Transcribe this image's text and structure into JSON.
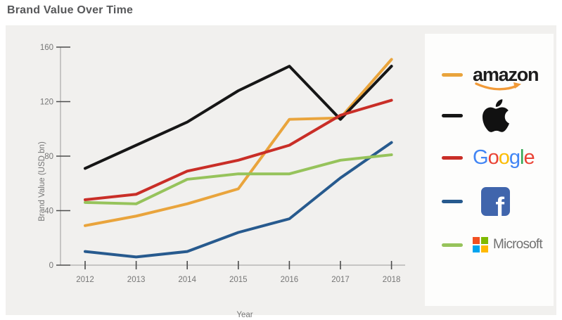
{
  "page": {
    "title": "Brand Value Over Time"
  },
  "chart_data": {
    "type": "line",
    "title": "Brand Value Over Time",
    "xlabel": "Year",
    "ylabel": "Brand Value (USD bn)",
    "x": [
      2012,
      2013,
      2014,
      2015,
      2016,
      2017,
      2018
    ],
    "yticks": [
      0,
      40,
      80,
      120,
      160
    ],
    "ylim": [
      0,
      160
    ],
    "grid": false,
    "legend_position": "right",
    "series": [
      {
        "name": "amazon",
        "color": "#E9A43C",
        "values": [
          29,
          36,
          45,
          56,
          107,
          108,
          151
        ]
      },
      {
        "name": "Apple",
        "color": "#161616",
        "values": [
          71,
          88,
          105,
          128,
          146,
          107,
          146
        ]
      },
      {
        "name": "Google",
        "color": "#C92E27",
        "values": [
          48,
          52,
          69,
          77,
          88,
          110,
          121
        ]
      },
      {
        "name": "Facebook",
        "color": "#275A8E",
        "values": [
          10,
          6,
          10,
          24,
          34,
          64,
          90
        ]
      },
      {
        "name": "Microsoft",
        "color": "#96C35B",
        "values": [
          46,
          45,
          63,
          67,
          67,
          77,
          81
        ]
      }
    ]
  },
  "legend": {
    "amazon": {
      "text": "amazon",
      "smile_color": "#F19A38",
      "icon": "amazon-smile-icon"
    },
    "apple": {
      "icon": "apple-logo-icon",
      "color": "#111111"
    },
    "google": {
      "letters": [
        "G",
        "o",
        "o",
        "g",
        "l",
        "e"
      ],
      "letter_colors": [
        "#4285F4",
        "#EA4335",
        "#FBBC05",
        "#4285F4",
        "#34A853",
        "#EA4335"
      ]
    },
    "facebook": {
      "letter": "f",
      "square_color": "#4065AC",
      "icon": "facebook-square-icon"
    },
    "microsoft": {
      "text": "Microsoft",
      "square_colors": [
        "#F25022",
        "#7FBA00",
        "#00A4EF",
        "#FFB900"
      ],
      "icon": "microsoft-grid-icon"
    }
  }
}
